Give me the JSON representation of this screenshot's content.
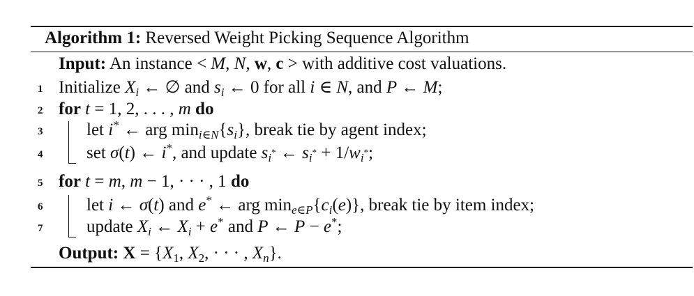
{
  "algorithm": {
    "label": "Algorithm 1:",
    "title": "Reversed Weight Picking Sequence Algorithm"
  },
  "input": {
    "keyword": "Input:",
    "text_before": "An instance",
    "text_after": "with additive cost valuations."
  },
  "lines": [
    {
      "number": "1",
      "text_a": "Initialize",
      "text_b": "and",
      "text_c": "for all",
      "text_d": ", and"
    },
    {
      "number": "2",
      "kw_for": "for",
      "kw_do": "do"
    },
    {
      "number": "3",
      "text_a": "let",
      "text_b": ", break tie by agent index;"
    },
    {
      "number": "4",
      "text_a": "set",
      "text_b": ", and update"
    },
    {
      "number": "5",
      "kw_for": "for",
      "kw_do": "do"
    },
    {
      "number": "6",
      "text_a": "let",
      "text_b": "and",
      "text_c": ", break tie by item index;"
    },
    {
      "number": "7",
      "text_a": "update",
      "text_b": "and"
    }
  ],
  "output": {
    "keyword": "Output:"
  }
}
